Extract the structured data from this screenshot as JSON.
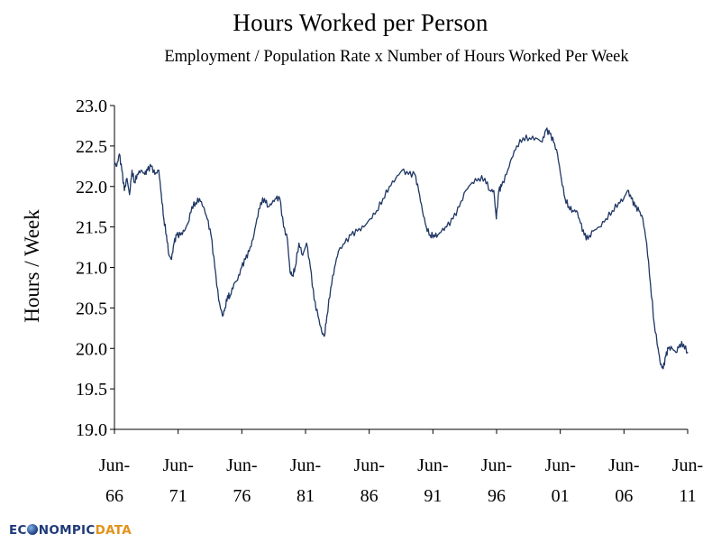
{
  "chart_data": {
    "type": "line",
    "title": "Hours Worked per Person",
    "subtitle": "Employment / Population Rate x Number of Hours Worked Per Week",
    "xlabel": "",
    "ylabel": "Hours / Week",
    "ylim": [
      19.0,
      23.0
    ],
    "yticks": [
      "19.0",
      "19.5",
      "20.0",
      "20.5",
      "21.0",
      "21.5",
      "22.0",
      "22.5",
      "23.0"
    ],
    "xlim": [
      1966.42,
      2011.42
    ],
    "xticks": [
      {
        "x": 1966.42,
        "line1": "Jun-",
        "line2": "66"
      },
      {
        "x": 1971.42,
        "line1": "Jun-",
        "line2": "71"
      },
      {
        "x": 1976.42,
        "line1": "Jun-",
        "line2": "76"
      },
      {
        "x": 1981.42,
        "line1": "Jun-",
        "line2": "81"
      },
      {
        "x": 1986.42,
        "line1": "Jun-",
        "line2": "86"
      },
      {
        "x": 1991.42,
        "line1": "Jun-",
        "line2": "91"
      },
      {
        "x": 1996.42,
        "line1": "Jun-",
        "line2": "96"
      },
      {
        "x": 2001.42,
        "line1": "Jun-",
        "line2": "01"
      },
      {
        "x": 2006.42,
        "line1": "Jun-",
        "line2": "06"
      },
      {
        "x": 2011.42,
        "line1": "Jun-",
        "line2": "11"
      }
    ],
    "grid": false,
    "line_color": "#1f3764",
    "series": [
      {
        "x": [
          1966.42,
          1966.6,
          1966.8,
          1967.0,
          1967.2,
          1967.4,
          1967.6,
          1967.8,
          1968.0,
          1968.2,
          1968.5,
          1968.8,
          1969.0,
          1969.3,
          1969.6,
          1969.9,
          1970.1,
          1970.3,
          1970.5,
          1970.7,
          1970.9,
          1971.1,
          1971.3,
          1971.6,
          1971.9,
          1972.2,
          1972.5,
          1972.8,
          1973.1,
          1973.4,
          1973.7,
          1974.0,
          1974.3,
          1974.6,
          1974.9,
          1975.1,
          1975.3,
          1975.5,
          1975.8,
          1976.1,
          1976.4,
          1976.7,
          1977.0,
          1977.3,
          1977.6,
          1977.9,
          1978.2,
          1978.5,
          1978.8,
          1979.1,
          1979.4,
          1979.7,
          1980.0,
          1980.2,
          1980.4,
          1980.6,
          1980.9,
          1981.2,
          1981.5,
          1981.8,
          1982.1,
          1982.4,
          1982.7,
          1982.9,
          1983.1,
          1983.4,
          1983.7,
          1984.0,
          1984.5,
          1985.0,
          1985.5,
          1986.0,
          1986.5,
          1987.0,
          1987.5,
          1988.0,
          1988.5,
          1989.0,
          1989.5,
          1990.0,
          1990.3,
          1990.6,
          1990.9,
          1991.2,
          1991.5,
          1991.8,
          1992.1,
          1992.5,
          1993.0,
          1993.5,
          1994.0,
          1994.5,
          1995.0,
          1995.5,
          1995.9,
          1996.2,
          1996.4,
          1996.6,
          1996.8,
          1997.2,
          1997.6,
          1998.0,
          1998.5,
          1999.0,
          1999.5,
          2000.0,
          2000.3,
          2000.6,
          2000.9,
          2001.2,
          2001.5,
          2001.8,
          2002.1,
          2002.4,
          2002.7,
          2003.0,
          2003.3,
          2003.6,
          2004.0,
          2004.5,
          2005.0,
          2005.5,
          2006.0,
          2006.4,
          2006.7,
          2007.0,
          2007.3,
          2007.6,
          2007.9,
          2008.2,
          2008.5,
          2008.8,
          2009.1,
          2009.3,
          2009.5,
          2009.7,
          2009.9,
          2010.2,
          2010.5,
          2010.8,
          2011.1,
          2011.42
        ],
        "y": [
          22.3,
          22.25,
          22.4,
          22.2,
          21.95,
          22.1,
          21.9,
          22.2,
          22.05,
          22.15,
          22.2,
          22.15,
          22.2,
          22.25,
          22.15,
          22.2,
          21.9,
          21.6,
          21.4,
          21.15,
          21.1,
          21.3,
          21.4,
          21.4,
          21.45,
          21.55,
          21.75,
          21.8,
          21.85,
          21.75,
          21.6,
          21.4,
          21.0,
          20.6,
          20.4,
          20.5,
          20.65,
          20.65,
          20.8,
          20.85,
          21.0,
          21.1,
          21.2,
          21.35,
          21.6,
          21.8,
          21.85,
          21.75,
          21.8,
          21.85,
          21.85,
          21.5,
          21.35,
          20.95,
          20.9,
          21.0,
          21.3,
          21.15,
          21.3,
          21.0,
          20.6,
          20.4,
          20.2,
          20.15,
          20.4,
          20.75,
          21.0,
          21.2,
          21.3,
          21.4,
          21.45,
          21.5,
          21.6,
          21.7,
          21.85,
          22.0,
          22.1,
          22.2,
          22.15,
          22.15,
          21.95,
          21.7,
          21.5,
          21.4,
          21.4,
          21.4,
          21.45,
          21.5,
          21.6,
          21.75,
          21.95,
          22.05,
          22.1,
          22.1,
          21.95,
          21.95,
          21.6,
          21.95,
          22.0,
          22.15,
          22.35,
          22.5,
          22.6,
          22.6,
          22.6,
          22.55,
          22.7,
          22.65,
          22.55,
          22.4,
          22.1,
          21.85,
          21.75,
          21.7,
          21.7,
          21.55,
          21.4,
          21.35,
          21.45,
          21.5,
          21.6,
          21.7,
          21.8,
          21.85,
          21.95,
          21.85,
          21.75,
          21.7,
          21.6,
          21.3,
          20.8,
          20.3,
          20.0,
          19.8,
          19.75,
          19.9,
          20.0,
          20.0,
          19.95,
          20.05,
          20.05,
          19.95
        ]
      }
    ]
  },
  "logo": {
    "text_a": "EC",
    "text_b": "NOMPIC",
    "text_c": "DATA"
  }
}
